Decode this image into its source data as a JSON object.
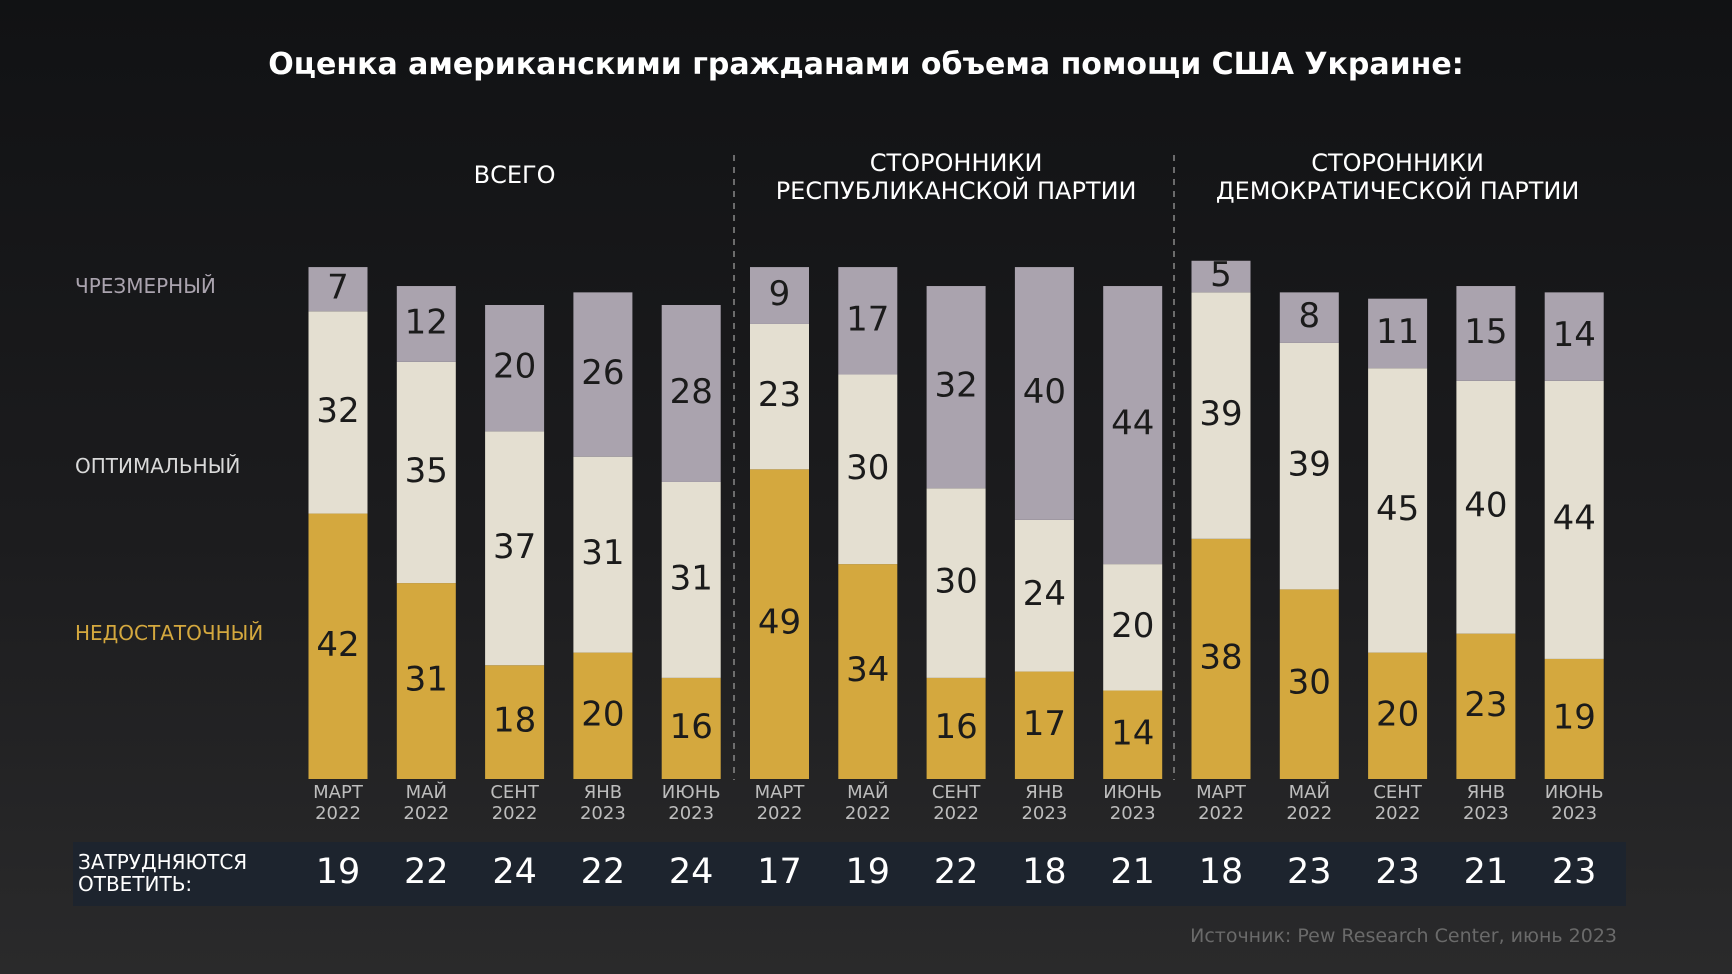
{
  "chart_data": {
    "type": "bar",
    "stacked": true,
    "title": "Оценка американскими гражданами объема помощи США Украине:",
    "groups": [
      {
        "label": "ВСЕГО",
        "categories": [
          "МАРТ 2022",
          "МАЙ 2022",
          "СЕНТ 2022",
          "ЯНВ 2023",
          "ИЮНЬ 2023"
        ]
      },
      {
        "label": "СТОРОННИКИ РЕСПУБЛИКАНСКОЙ ПАРТИИ",
        "categories": [
          "МАРТ 2022",
          "МАЙ 2022",
          "СЕНТ 2022",
          "ЯНВ 2023",
          "ИЮНЬ 2023"
        ]
      },
      {
        "label": "СТОРОННИКИ ДЕМОКРАТИЧЕСКОЙ ПАРТИИ",
        "categories": [
          "МАРТ 2022",
          "МАЙ 2022",
          "СЕНТ 2022",
          "ЯНВ 2023",
          "ИЮНЬ 2023"
        ]
      }
    ],
    "series": [
      {
        "name": "НЕДОСТАТОЧНЫЙ",
        "color": "#d4a83e",
        "values": [
          42,
          31,
          18,
          20,
          16,
          49,
          34,
          16,
          17,
          14,
          38,
          30,
          20,
          23,
          19
        ]
      },
      {
        "name": "ОПТИМАЛЬНЫЙ",
        "color": "#e4dfd1",
        "values": [
          32,
          35,
          37,
          31,
          31,
          23,
          30,
          30,
          24,
          20,
          39,
          39,
          45,
          40,
          44
        ]
      },
      {
        "name": "ЧРЕЗМЕРНЫЙ",
        "color": "#aaa3ae",
        "values": [
          7,
          12,
          20,
          26,
          28,
          9,
          17,
          32,
          40,
          44,
          5,
          8,
          11,
          15,
          14
        ]
      }
    ],
    "ylim": [
      0,
      100
    ],
    "no_answer": {
      "label": "ЗАТРУДНЯЮТСЯ ОТВЕТИТЬ:",
      "values": [
        19,
        22,
        24,
        22,
        24,
        17,
        19,
        22,
        18,
        21,
        18,
        23,
        23,
        21,
        23
      ]
    },
    "source": "Источник: Pew Research Center, июнь 2023"
  }
}
